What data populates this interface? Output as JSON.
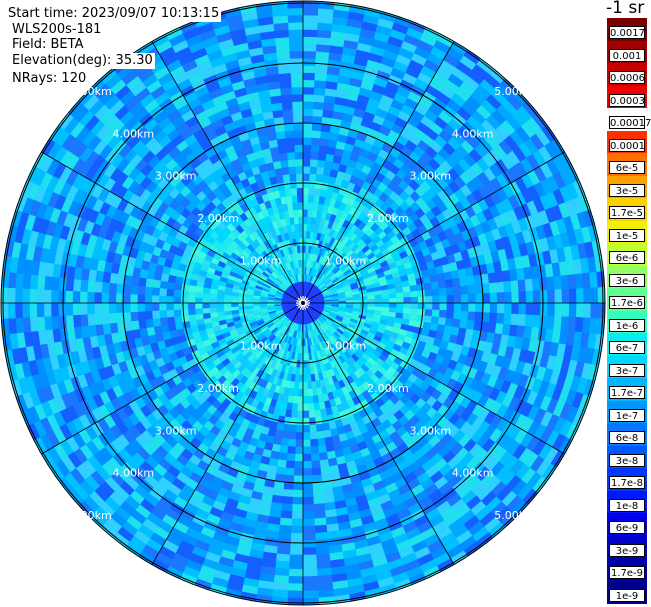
{
  "header": {
    "start_time": "Start time: 2023/09/07 10:13:15",
    "station": "WLS200s-181",
    "field": "Field: BETA",
    "elevation": "Elevation(deg): 35.30",
    "nrays": "NRays: 120"
  },
  "colorbar": {
    "unit": "-1 sr",
    "labels": [
      "0.0017",
      "0.001",
      "0.0006",
      "0.0003",
      "0.00017",
      "0.0001",
      "6e-5",
      "3e-5",
      "1.7e-5",
      "1e-5",
      "6e-6",
      "3e-6",
      "1.7e-6",
      "1e-6",
      "6e-7",
      "3e-7",
      "1.7e-7",
      "1e-7",
      "6e-8",
      "3e-8",
      "1.7e-8",
      "1e-8",
      "6e-9",
      "3e-9",
      "1.7e-9",
      "1e-9"
    ],
    "colors": [
      "#7a0000",
      "#a00000",
      "#c80000",
      "#f00000",
      "#ffffff",
      "#ff3000",
      "#ff7000",
      "#ffa000",
      "#ffd000",
      "#f0f000",
      "#c0ff30",
      "#90ff60",
      "#60ff90",
      "#30ffc0",
      "#00f0f0",
      "#00d8ff",
      "#00b8ff",
      "#0098ff",
      "#0078ff",
      "#0058ff",
      "#0038ff",
      "#0018ff",
      "#0000e8",
      "#0000c8",
      "#0000a8",
      "#000088"
    ]
  },
  "ring_labels": [
    "1.00km",
    "2.00km",
    "3.00km",
    "4.00km",
    "5.00km"
  ],
  "colors": {
    "outside_range": "#0030ff",
    "background": "#ffffff"
  }
}
